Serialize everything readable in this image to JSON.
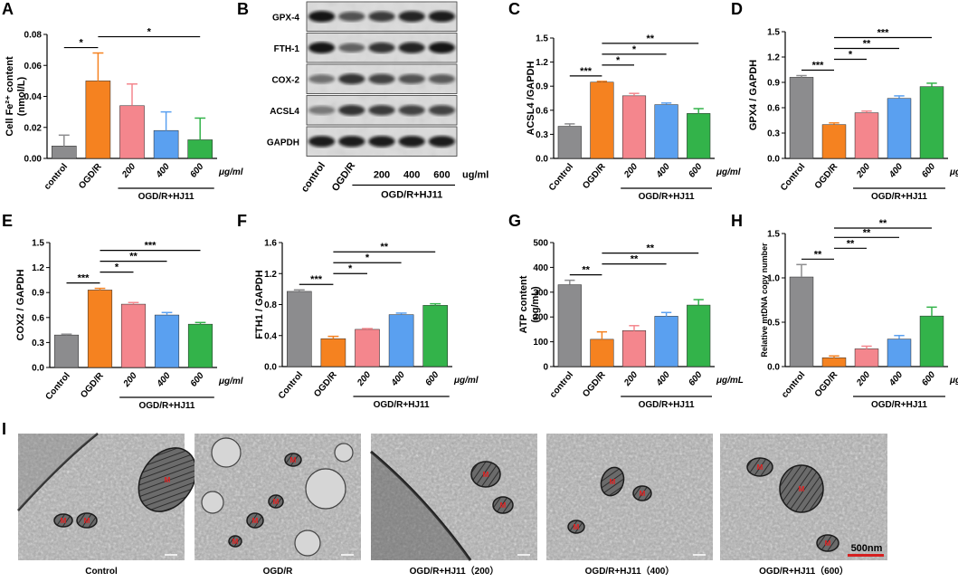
{
  "colors": [
    "#8c8c8e",
    "#f58220",
    "#f4868d",
    "#5aa0f0",
    "#33b34a"
  ],
  "em_caption": [
    "Control",
    "OGD/R",
    "OGD/R+HJ11（200）",
    "OGD/R+HJ11（400）",
    "OGD/R+HJ11（600）"
  ],
  "em_scalebar": "500nm",
  "em_label": "M",
  "western_blot": {
    "letter": "B",
    "bands": [
      "GPX-4",
      "FTH-1",
      "COX-2",
      "ACSL4",
      "GAPDH"
    ],
    "lanes": [
      "control",
      "OGD/R",
      "200",
      "400",
      "600"
    ],
    "unit": "ug/ml",
    "group_label": "OGD/R+HJ11"
  },
  "chart_data": [
    {
      "letter": "A",
      "type": "bar",
      "ylabel": "Cell Fe²⁺ content",
      "ylabel2": "(nmol/L)",
      "ylim": [
        0,
        0.08
      ],
      "yticks": [
        "0.00",
        "0.02",
        "0.04",
        "0.06",
        "0.08"
      ],
      "categories": [
        "control",
        "OGD/R",
        "200",
        "400",
        "600"
      ],
      "values": [
        0.008,
        0.05,
        0.034,
        0.018,
        0.012
      ],
      "errors": [
        0.007,
        0.018,
        0.014,
        0.012,
        0.014
      ],
      "unit": "μg/ml",
      "group_label": "OGD/R+HJ11",
      "sig": [
        {
          "from": 0,
          "to": 1,
          "label": "*"
        },
        {
          "from": 1,
          "to": 4,
          "label": "*"
        }
      ]
    },
    {
      "letter": "C",
      "type": "bar",
      "ylabel": "ACSL4 /GAPDH",
      "ylim": [
        0,
        1.5
      ],
      "yticks": [
        "0.0",
        "0.3",
        "0.6",
        "0.9",
        "1.2",
        "1.5"
      ],
      "categories": [
        "Control",
        "OGD/R",
        "200",
        "400",
        "600"
      ],
      "values": [
        0.4,
        0.95,
        0.78,
        0.67,
        0.56
      ],
      "errors": [
        0.03,
        0.01,
        0.03,
        0.02,
        0.06
      ],
      "unit": "μg/ml",
      "group_label": "OGD/R+HJ11",
      "sig": [
        {
          "from": 0,
          "to": 1,
          "label": "***"
        },
        {
          "from": 1,
          "to": 2,
          "label": "*"
        },
        {
          "from": 1,
          "to": 3,
          "label": "*"
        },
        {
          "from": 1,
          "to": 4,
          "label": "**"
        }
      ]
    },
    {
      "letter": "D",
      "type": "bar",
      "ylabel": "GPX4 / GAPDH",
      "ylim": [
        0,
        1.5
      ],
      "yticks": [
        "0.0",
        "0.3",
        "0.6",
        "0.9",
        "1.2",
        "1.5"
      ],
      "categories": [
        "Control",
        "OGD/R",
        "200",
        "400",
        "600"
      ],
      "values": [
        0.96,
        0.4,
        0.54,
        0.71,
        0.85
      ],
      "errors": [
        0.02,
        0.02,
        0.02,
        0.03,
        0.04
      ],
      "unit": "μg/mL",
      "group_label": "OGD/R+HJ11",
      "sig": [
        {
          "from": 0,
          "to": 1,
          "label": "***"
        },
        {
          "from": 1,
          "to": 2,
          "label": "*"
        },
        {
          "from": 1,
          "to": 3,
          "label": "**"
        },
        {
          "from": 1,
          "to": 4,
          "label": "***"
        }
      ]
    },
    {
      "letter": "E",
      "type": "bar",
      "ylabel": "COX2 / GAPDH",
      "ylim": [
        0,
        1.5
      ],
      "yticks": [
        "0.0",
        "0.3",
        "0.6",
        "0.9",
        "1.2",
        "1.5"
      ],
      "categories": [
        "Control",
        "OGD/R",
        "200",
        "400",
        "600"
      ],
      "values": [
        0.39,
        0.93,
        0.76,
        0.63,
        0.52
      ],
      "errors": [
        0.01,
        0.02,
        0.02,
        0.03,
        0.02
      ],
      "unit": "μg/ml",
      "group_label": "OGD/R+HJ11",
      "sig": [
        {
          "from": 0,
          "to": 1,
          "label": "***"
        },
        {
          "from": 1,
          "to": 2,
          "label": "*"
        },
        {
          "from": 1,
          "to": 3,
          "label": "**"
        },
        {
          "from": 1,
          "to": 4,
          "label": "***"
        }
      ]
    },
    {
      "letter": "F",
      "type": "bar",
      "ylabel": "FTH1 / GAPDH",
      "ylim": [
        0,
        1.6
      ],
      "yticks": [
        "0.0",
        "0.4",
        "0.8",
        "1.2",
        "1.6"
      ],
      "categories": [
        "Control",
        "OGD/R",
        "200",
        "400",
        "600"
      ],
      "values": [
        0.97,
        0.36,
        0.48,
        0.67,
        0.79
      ],
      "errors": [
        0.02,
        0.03,
        0.01,
        0.02,
        0.02
      ],
      "unit": "μg/ml",
      "group_label": "OGD/R+HJ11",
      "sig": [
        {
          "from": 0,
          "to": 1,
          "label": "***"
        },
        {
          "from": 1,
          "to": 2,
          "label": "*"
        },
        {
          "from": 1,
          "to": 3,
          "label": "*"
        },
        {
          "from": 1,
          "to": 4,
          "label": "**"
        }
      ]
    },
    {
      "letter": "G",
      "type": "bar",
      "ylabel": "ATP content",
      "ylabel2": "(ng/mL)",
      "ylim": [
        0,
        500
      ],
      "yticks": [
        "0",
        "100",
        "200",
        "300",
        "400",
        "500"
      ],
      "categories": [
        "control",
        "OGD/R",
        "200",
        "400",
        "600"
      ],
      "values": [
        330,
        110,
        145,
        203,
        248
      ],
      "errors": [
        18,
        30,
        20,
        15,
        22
      ],
      "unit": "μg/mL",
      "group_label": "OGD/R+HJ11",
      "sig": [
        {
          "from": 0,
          "to": 1,
          "label": "**"
        },
        {
          "from": 1,
          "to": 3,
          "label": "**"
        },
        {
          "from": 1,
          "to": 4,
          "label": "**"
        }
      ]
    },
    {
      "letter": "H",
      "type": "bar",
      "ylabel": "Relative mtDNA copy number",
      "ylim": [
        0,
        1.5
      ],
      "yticks": [
        "0.0",
        "0.5",
        "1.0",
        "1.5"
      ],
      "categories": [
        "control",
        "OGD/R",
        "200",
        "400",
        "600"
      ],
      "values": [
        1.01,
        0.1,
        0.2,
        0.31,
        0.57
      ],
      "errors": [
        0.14,
        0.02,
        0.03,
        0.04,
        0.1
      ],
      "unit": "μg/mL",
      "group_label": "OGD/R+HJ11",
      "sig": [
        {
          "from": 0,
          "to": 1,
          "label": "**"
        },
        {
          "from": 1,
          "to": 2,
          "label": "**"
        },
        {
          "from": 1,
          "to": 3,
          "label": "**"
        },
        {
          "from": 1,
          "to": 4,
          "label": "**"
        }
      ]
    }
  ]
}
